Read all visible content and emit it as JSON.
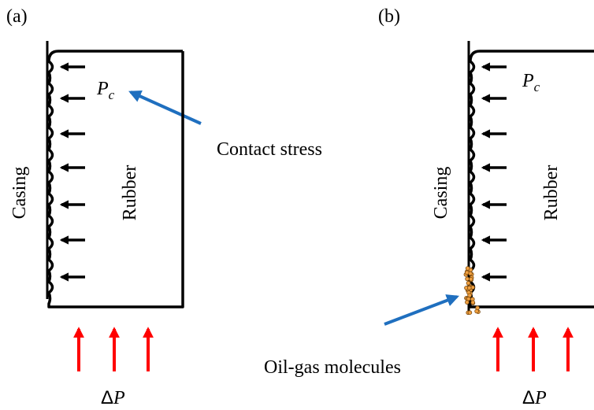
{
  "panels": [
    {
      "label": "(a)",
      "casing": "Casing",
      "rubber": "Rubber",
      "pressure_symbol": "P",
      "pressure_subscript": "c",
      "load_delta": "Δ",
      "load_symbol": "P"
    },
    {
      "label": "(b)",
      "casing": "Casing",
      "rubber": "Rubber",
      "pressure_symbol": "P",
      "pressure_subscript": "c",
      "load_delta": "Δ",
      "load_symbol": "P"
    }
  ],
  "annotations": {
    "contact_stress": "Contact stress",
    "oil_gas": "Oil-gas molecules"
  }
}
